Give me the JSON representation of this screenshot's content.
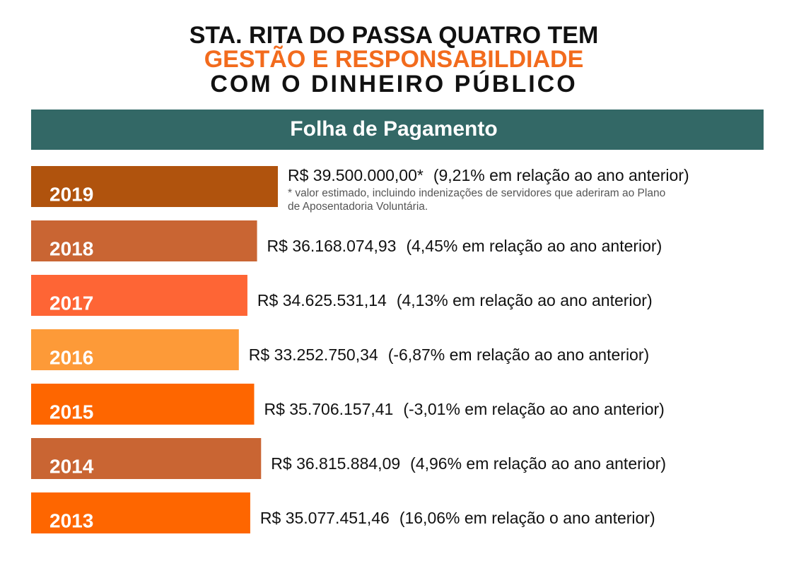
{
  "chart_data": {
    "type": "bar",
    "title_lines": [
      "STA. RITA DO PASSA QUATRO TEM",
      "GESTÃO  E  RESPONSABILDIADE",
      "COM  O  DINHEIRO  PÚBLICO"
    ],
    "subtitle": "Folha de Pagamento",
    "categories": [
      "2019",
      "2018",
      "2017",
      "2016",
      "2015",
      "2014",
      "2013"
    ],
    "values": [
      39500000.0,
      36168074.93,
      34625531.14,
      33252750.34,
      35706157.41,
      36815884.09,
      35077451.46
    ],
    "value_labels": [
      "R$ 39.500.000,00*",
      "R$ 36.168.074,93",
      "R$ 34.625.531,14",
      "R$ 33.252.750,34",
      "R$ 35.706.157,41",
      "R$ 36.815.884,09",
      "R$ 35.077.451,46"
    ],
    "annotations": [
      "(9,21% em relação ao ano anterior)",
      "(4,45% em relação ao ano anterior)",
      "(4,13% em relação ao ano anterior)",
      "(-6,87% em relação ao ano anterior)",
      "(-3,01% em relação ao ano anterior)",
      "(4,96% em relação ao ano anterior)",
      "(16,06% em relação o ano anterior)"
    ],
    "footnote": [
      "* valor estimado, incluindo indenizações de servidores que aderiram ao Plano",
      "de Aposentadoria Voluntária."
    ],
    "colors": [
      "#b0530d",
      "#c96533",
      "#fe6535",
      "#fd9a38",
      "#fe6600",
      "#c96533",
      "#fe6600"
    ]
  }
}
